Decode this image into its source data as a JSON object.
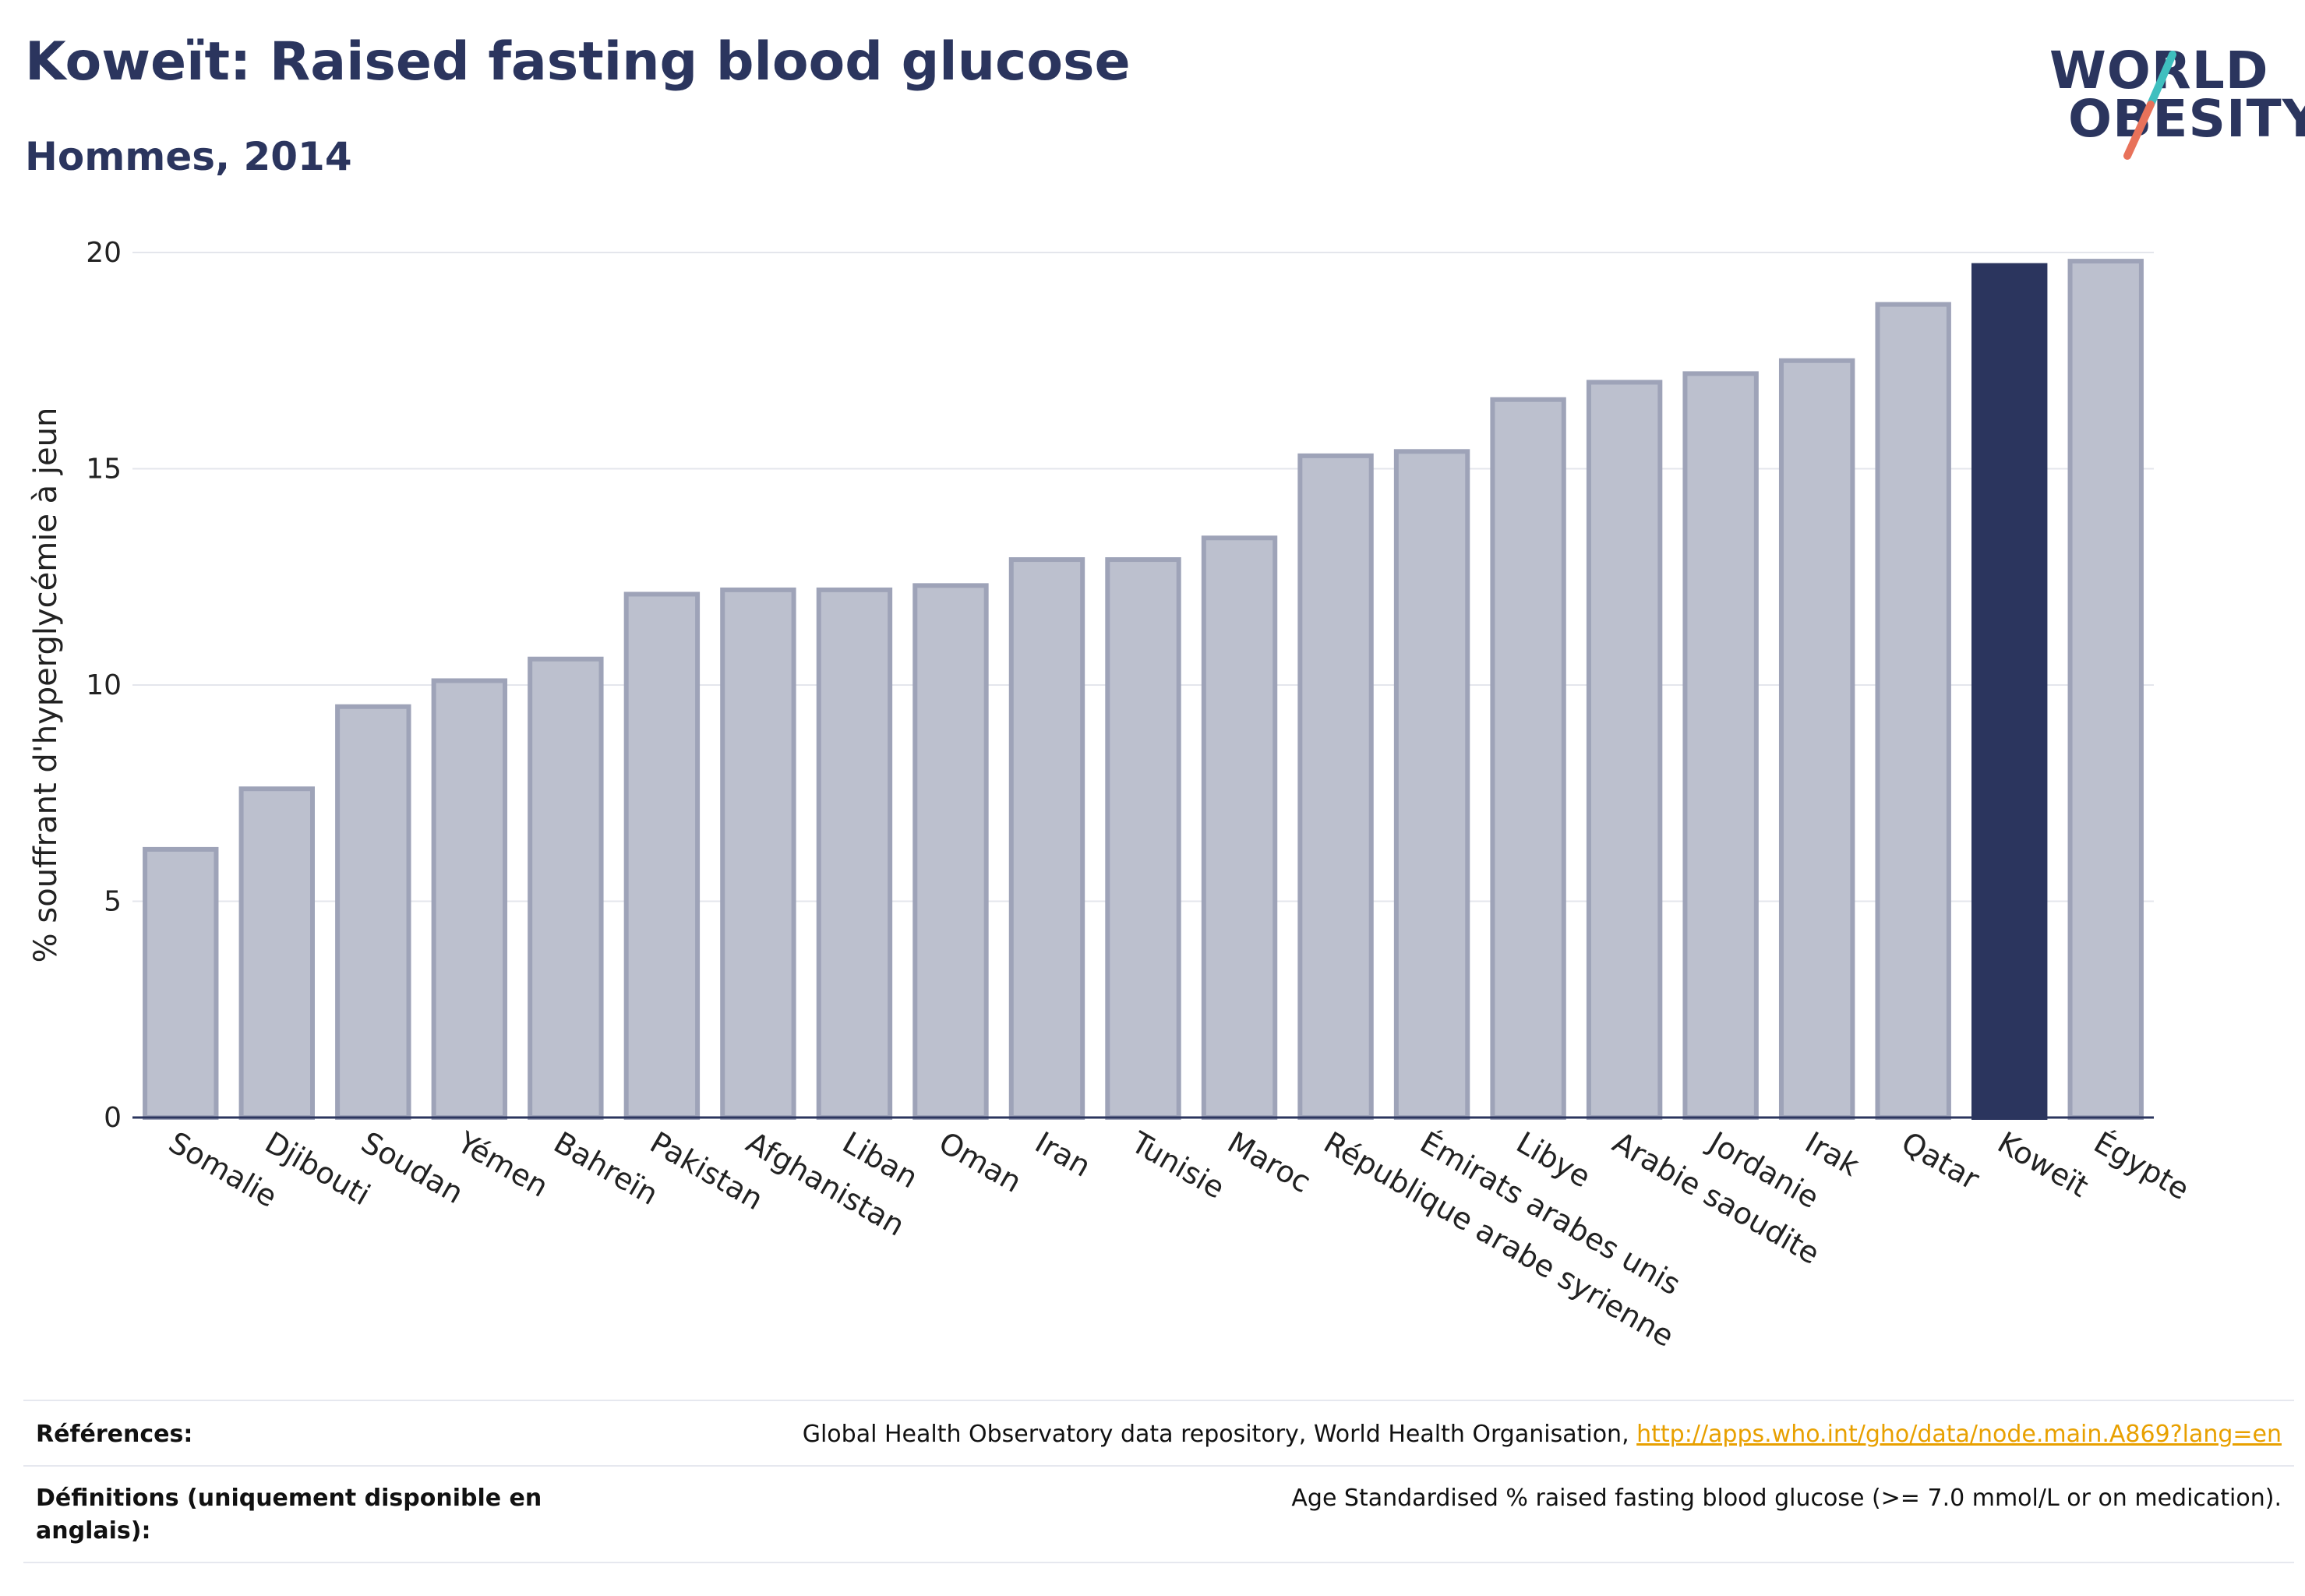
{
  "header": {
    "title": "Koweït: Raised fasting blood glucose",
    "subtitle": "Hommes, 2014"
  },
  "logo": {
    "line1": "WORLD",
    "line2": "OBESITY",
    "colors": {
      "text": "#2b355e",
      "slash_top": "#3fbfbf",
      "slash_bottom": "#e8725a"
    }
  },
  "chart_data": {
    "type": "bar",
    "title": "Koweït: Raised fasting blood glucose",
    "subtitle": "Hommes, 2014",
    "ylabel": "% souffrant d'hyperglycémie à jeun",
    "xlabel": "",
    "ylim": [
      0,
      20
    ],
    "yticks": [
      0,
      5,
      10,
      15,
      20
    ],
    "grid": true,
    "highlight": "Koweït",
    "colors": {
      "bar": "#bcc0ce",
      "bar_edge": "#9ea3b8",
      "highlight": "#2b355e"
    },
    "categories": [
      "Somalie",
      "Djibouti",
      "Soudan",
      "Yémen",
      "Bahreïn",
      "Pakistan",
      "Afghanistan",
      "Liban",
      "Oman",
      "Iran",
      "Tunisie",
      "Maroc",
      "République arabe syrienne",
      "Émirats arabes unis",
      "Libye",
      "Arabie saoudite",
      "Jordanie",
      "Irak",
      "Qatar",
      "Koweït",
      "Égypte"
    ],
    "values": [
      6.2,
      7.6,
      9.5,
      10.1,
      10.6,
      12.1,
      12.2,
      12.2,
      12.3,
      12.9,
      12.9,
      13.4,
      15.3,
      15.4,
      16.6,
      17.0,
      17.2,
      17.5,
      18.8,
      19.7,
      19.8
    ]
  },
  "footer": {
    "references_label": "Références:",
    "references_text": "Global Health Observatory data repository, World Health Organisation, ",
    "references_link": "http://apps.who.int/gho/data/node.main.A869?lang=en",
    "definitions_label_1": "Définitions (uniquement disponible en",
    "definitions_label_2": "anglais):",
    "definitions_text": "Age Standardised % raised fasting blood glucose (>= 7.0 mmol/L or on medication)."
  }
}
